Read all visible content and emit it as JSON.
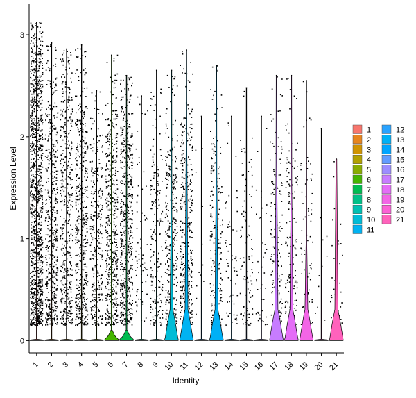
{
  "chart_data": {
    "type": "violin",
    "xlabel": "Identity",
    "ylabel": "Expression Level",
    "ylim": [
      -0.12,
      3.3
    ],
    "yticks": [
      0,
      1,
      2,
      3
    ],
    "legend_position": "right",
    "categories": [
      "1",
      "2",
      "3",
      "4",
      "5",
      "6",
      "7",
      "8",
      "9",
      "10",
      "11",
      "12",
      "13",
      "14",
      "15",
      "16",
      "17",
      "18",
      "19",
      "20",
      "21"
    ],
    "colors": [
      "#F8766D",
      "#E7851E",
      "#D09400",
      "#B2A100",
      "#89AC00",
      "#45B500",
      "#00BC51",
      "#00C087",
      "#00C0B2",
      "#00BCD6",
      "#00B3F2",
      "#29A3FF",
      "#00B0F6",
      "#00A5FF",
      "#619CFF",
      "#9C8DFF",
      "#C77CFF",
      "#E46DF6",
      "#F365E6",
      "#FC61D5",
      "#FF62BC"
    ],
    "series": [
      {
        "name": "1",
        "max": 3.12,
        "dense_top": 2.7,
        "n_points": 1200,
        "violin": {
          "width": 0.0,
          "top": 0.0
        }
      },
      {
        "name": "2",
        "max": 2.92,
        "dense_top": 2.3,
        "n_points": 520,
        "violin": {
          "width": 0.0,
          "top": 0.0
        }
      },
      {
        "name": "3",
        "max": 2.86,
        "dense_top": 2.5,
        "n_points": 450,
        "violin": {
          "width": 0.0,
          "top": 0.0
        }
      },
      {
        "name": "4",
        "max": 2.9,
        "dense_top": 2.3,
        "n_points": 480,
        "violin": {
          "width": 0.0,
          "top": 0.0
        }
      },
      {
        "name": "5",
        "max": 2.45,
        "dense_top": 1.9,
        "n_points": 300,
        "violin": {
          "width": 0.0,
          "top": 0.0
        }
      },
      {
        "name": "6",
        "max": 2.8,
        "dense_top": 2.2,
        "n_points": 520,
        "violin": {
          "width": 0.55,
          "top": 0.1
        }
      },
      {
        "name": "7",
        "max": 2.6,
        "dense_top": 2.1,
        "n_points": 560,
        "violin": {
          "width": 0.55,
          "top": 0.1
        }
      },
      {
        "name": "8",
        "max": 2.4,
        "dense_top": 1.6,
        "n_points": 70,
        "violin": {
          "width": 0.0,
          "top": 0.0
        }
      },
      {
        "name": "9",
        "max": 2.65,
        "dense_top": 1.9,
        "n_points": 200,
        "violin": {
          "width": 0.0,
          "top": 0.0
        }
      },
      {
        "name": "10",
        "max": 2.65,
        "dense_top": 1.9,
        "n_points": 300,
        "violin": {
          "width": 0.85,
          "top": 1.25
        }
      },
      {
        "name": "11",
        "max": 2.85,
        "dense_top": 2.2,
        "n_points": 360,
        "violin": {
          "width": 0.85,
          "top": 1.9
        }
      },
      {
        "name": "12",
        "max": 2.2,
        "dense_top": 1.5,
        "n_points": 12,
        "violin": {
          "width": 0.0,
          "top": 0.0
        }
      },
      {
        "name": "13",
        "max": 2.7,
        "dense_top": 2.0,
        "n_points": 200,
        "violin": {
          "width": 0.85,
          "top": 1.6
        }
      },
      {
        "name": "14",
        "max": 2.2,
        "dense_top": 1.6,
        "n_points": 60,
        "violin": {
          "width": 0.0,
          "top": 0.0
        }
      },
      {
        "name": "15",
        "max": 2.48,
        "dense_top": 1.9,
        "n_points": 100,
        "violin": {
          "width": 0.0,
          "top": 0.0
        }
      },
      {
        "name": "16",
        "max": 2.2,
        "dense_top": 1.5,
        "n_points": 40,
        "violin": {
          "width": 0.0,
          "top": 0.0
        }
      },
      {
        "name": "17",
        "max": 2.6,
        "dense_top": 2.0,
        "n_points": 160,
        "violin": {
          "width": 0.9,
          "top": 1.7
        }
      },
      {
        "name": "18",
        "max": 2.6,
        "dense_top": 1.9,
        "n_points": 150,
        "violin": {
          "width": 0.85,
          "top": 1.5
        }
      },
      {
        "name": "19",
        "max": 2.55,
        "dense_top": 1.8,
        "n_points": 80,
        "violin": {
          "width": 0.85,
          "top": 0.95
        }
      },
      {
        "name": "20",
        "max": 2.08,
        "dense_top": 1.2,
        "n_points": 10,
        "violin": {
          "width": 0.0,
          "top": 0.0
        }
      },
      {
        "name": "21",
        "max": 1.78,
        "dense_top": 1.3,
        "n_points": 40,
        "violin": {
          "width": 0.9,
          "top": 1.78
        }
      }
    ]
  }
}
